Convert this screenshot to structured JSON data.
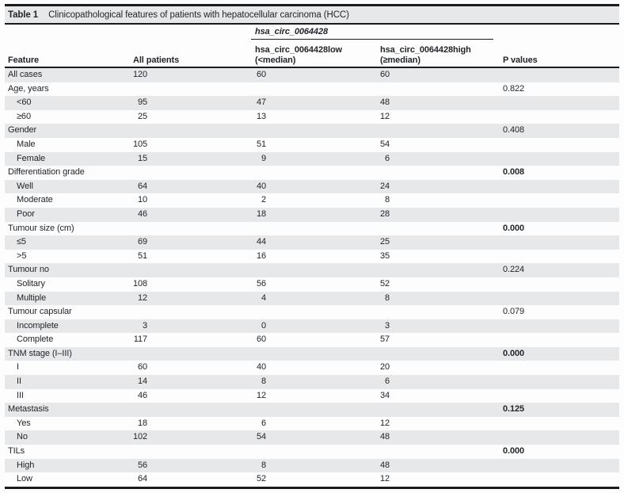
{
  "table": {
    "number": "Table 1",
    "caption": "Clinicopathological features of patients with hepatocellular carcinoma (HCC)",
    "column_group": "hsa_circ_0064428",
    "columns": {
      "feature": "Feature",
      "all_patients": "All patients",
      "low_line1": "hsa_circ_0064428low",
      "low_line2": "(<median)",
      "high_line1": "hsa_circ_0064428high",
      "high_line2": "(≥median)",
      "p_values": "P values"
    },
    "rows": [
      {
        "label": "All cases",
        "indent": false,
        "all": "120",
        "low": "60",
        "high": "60",
        "p": "",
        "p_bold": false
      },
      {
        "label": "Age, years",
        "indent": false,
        "all": "",
        "low": "",
        "high": "",
        "p": "0.822",
        "p_bold": false
      },
      {
        "label": "<60",
        "indent": true,
        "all": "95",
        "low": "47",
        "high": "48",
        "p": "",
        "p_bold": false
      },
      {
        "label": "≥60",
        "indent": true,
        "all": "25",
        "low": "13",
        "high": "12",
        "p": "",
        "p_bold": false
      },
      {
        "label": "Gender",
        "indent": false,
        "all": "",
        "low": "",
        "high": "",
        "p": "0.408",
        "p_bold": false
      },
      {
        "label": "Male",
        "indent": true,
        "all": "105",
        "low": "51",
        "high": "54",
        "p": "",
        "p_bold": false
      },
      {
        "label": "Female",
        "indent": true,
        "all": "15",
        "low": "9",
        "high": "6",
        "p": "",
        "p_bold": false
      },
      {
        "label": "Differentiation grade",
        "indent": false,
        "all": "",
        "low": "",
        "high": "",
        "p": "0.008",
        "p_bold": true
      },
      {
        "label": "Well",
        "indent": true,
        "all": "64",
        "low": "40",
        "high": "24",
        "p": "",
        "p_bold": false
      },
      {
        "label": "Moderate",
        "indent": true,
        "all": "10",
        "low": "2",
        "high": "8",
        "p": "",
        "p_bold": false
      },
      {
        "label": "Poor",
        "indent": true,
        "all": "46",
        "low": "18",
        "high": "28",
        "p": "",
        "p_bold": false
      },
      {
        "label": "Tumour size (cm)",
        "indent": false,
        "all": "",
        "low": "",
        "high": "",
        "p": "0.000",
        "p_bold": true
      },
      {
        "label": "≤5",
        "indent": true,
        "all": "69",
        "low": "44",
        "high": "25",
        "p": "",
        "p_bold": false
      },
      {
        "label": ">5",
        "indent": true,
        "all": "51",
        "low": "16",
        "high": "35",
        "p": "",
        "p_bold": false
      },
      {
        "label": "Tumour no",
        "indent": false,
        "all": "",
        "low": "",
        "high": "",
        "p": "0.224",
        "p_bold": false
      },
      {
        "label": "Solitary",
        "indent": true,
        "all": "108",
        "low": "56",
        "high": "52",
        "p": "",
        "p_bold": false
      },
      {
        "label": "Multiple",
        "indent": true,
        "all": "12",
        "low": "4",
        "high": "8",
        "p": "",
        "p_bold": false
      },
      {
        "label": "Tumour capsular",
        "indent": false,
        "all": "",
        "low": "",
        "high": "",
        "p": "0.079",
        "p_bold": false
      },
      {
        "label": "Incomplete",
        "indent": true,
        "all": "3",
        "low": "0",
        "high": "3",
        "p": "",
        "p_bold": false
      },
      {
        "label": "Complete",
        "indent": true,
        "all": "117",
        "low": "60",
        "high": "57",
        "p": "",
        "p_bold": false
      },
      {
        "label": "TNM stage (I–III)",
        "indent": false,
        "all": "",
        "low": "",
        "high": "",
        "p": "0.000",
        "p_bold": true
      },
      {
        "label": "I",
        "indent": true,
        "all": "60",
        "low": "40",
        "high": "20",
        "p": "",
        "p_bold": false
      },
      {
        "label": "II",
        "indent": true,
        "all": "14",
        "low": "8",
        "high": "6",
        "p": "",
        "p_bold": false
      },
      {
        "label": "III",
        "indent": true,
        "all": "46",
        "low": "12",
        "high": "34",
        "p": "",
        "p_bold": false
      },
      {
        "label": "Metastasis",
        "indent": false,
        "all": "",
        "low": "",
        "high": "",
        "p": "0.125",
        "p_bold": true
      },
      {
        "label": "Yes",
        "indent": true,
        "all": "18",
        "low": "6",
        "high": "12",
        "p": "",
        "p_bold": false
      },
      {
        "label": "No",
        "indent": true,
        "all": "102",
        "low": "54",
        "high": "48",
        "p": "",
        "p_bold": false
      },
      {
        "label": "TILs",
        "indent": false,
        "all": "",
        "low": "",
        "high": "",
        "p": "0.000",
        "p_bold": true
      },
      {
        "label": "High",
        "indent": true,
        "all": "56",
        "low": "8",
        "high": "48",
        "p": "",
        "p_bold": false
      },
      {
        "label": "Low",
        "indent": true,
        "all": "64",
        "low": "52",
        "high": "12",
        "p": "",
        "p_bold": false
      }
    ]
  },
  "colors": {
    "stripe": "#e7e8e9",
    "rule": "#1b1b1d",
    "text": "#22252a",
    "background": "#fdfdfd"
  }
}
